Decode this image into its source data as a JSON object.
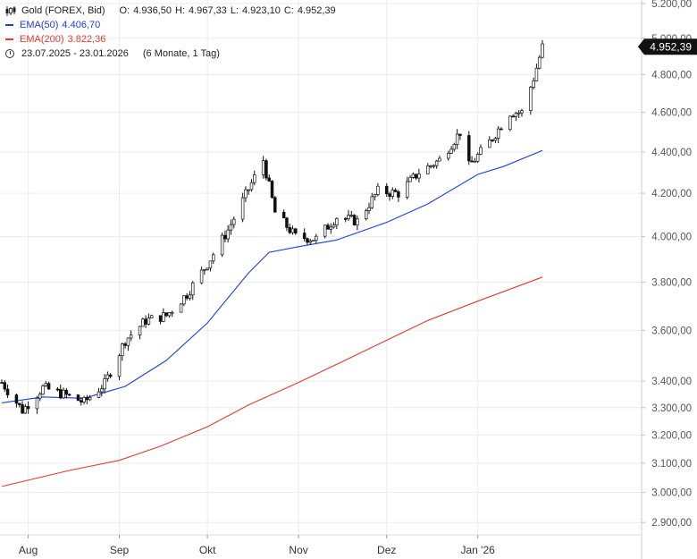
{
  "legend": {
    "instrument": "Gold (FOREX, Bid)",
    "open_label": "O:",
    "open": "4.936,50",
    "high_label": "H:",
    "high": "4.967,33",
    "low_label": "L:",
    "low": "4.923,10",
    "close_label": "C:",
    "close": "4.952,39",
    "ema50_name": "EMA(50)",
    "ema50_value": "4.406,70",
    "ema200_name": "EMA(200)",
    "ema200_value": "3.822,36",
    "range": "23.07.2025 - 23.01.2026",
    "period": "(6 Monate, 1 Tag)"
  },
  "colors": {
    "ema50": "#1e3fd6",
    "ema200": "#e33b2e",
    "candle": "#111111",
    "grid": "#ececec",
    "price_tag": "#111111"
  },
  "icons": {
    "chart-type": "candlestick-icon",
    "range": "clock-icon"
  },
  "chart_data": {
    "type": "line",
    "scale": "log",
    "ylim": [
      2860,
      5220
    ],
    "yticks": [
      2900,
      3000,
      3100,
      3200,
      3300,
      3400,
      3600,
      3800,
      4000,
      4200,
      4400,
      4600,
      4800,
      5000,
      5200
    ],
    "ytick_labels": [
      "2.900,00",
      "3.000,00",
      "3.100,00",
      "3.200,00",
      "3.300,00",
      "3.400,00",
      "3.600,00",
      "3.800,00",
      "4.000,00",
      "4.200,00",
      "4.400,00",
      "4.600,00",
      "4.800,00",
      "5.000,00",
      "5.200,00"
    ],
    "xlim": [
      "2025-07-23",
      "2026-01-23"
    ],
    "xticks": [
      {
        "date": "2025-08-01",
        "label": "Aug"
      },
      {
        "date": "2025-09-01",
        "label": "Sep"
      },
      {
        "date": "2025-10-01",
        "label": "Okt"
      },
      {
        "date": "2025-11-01",
        "label": "Nov"
      },
      {
        "date": "2025-12-01",
        "label": "Dez"
      },
      {
        "date": "2026-01-01",
        "label": "Jan '26"
      }
    ],
    "last_price": 4952.39,
    "last_price_label": "4.952,39",
    "series": [
      {
        "name": "Gold (FOREX, Bid)",
        "kind": "close",
        "x": [
          "2025-07-23",
          "2025-07-30",
          "2025-08-06",
          "2025-08-13",
          "2025-08-20",
          "2025-08-27",
          "2025-09-03",
          "2025-09-10",
          "2025-09-17",
          "2025-09-24",
          "2025-10-01",
          "2025-10-08",
          "2025-10-15",
          "2025-10-20",
          "2025-10-24",
          "2025-10-31",
          "2025-11-07",
          "2025-11-14",
          "2025-11-21",
          "2025-11-28",
          "2025-12-05",
          "2025-12-12",
          "2025-12-19",
          "2025-12-26",
          "2025-12-29",
          "2026-01-05",
          "2026-01-12",
          "2026-01-16",
          "2026-01-20",
          "2026-01-23"
        ],
        "values": [
          3395,
          3290,
          3375,
          3350,
          3320,
          3390,
          3560,
          3640,
          3660,
          3750,
          3880,
          4030,
          4220,
          4360,
          4110,
          4000,
          3990,
          4090,
          4070,
          4210,
          4200,
          4300,
          4360,
          4500,
          4330,
          4450,
          4600,
          4600,
          4780,
          4952
        ]
      },
      {
        "name": "EMA(50)",
        "x": [
          "2025-07-23",
          "2025-08-06",
          "2025-08-20",
          "2025-09-03",
          "2025-09-17",
          "2025-10-01",
          "2025-10-15",
          "2025-10-22",
          "2025-11-01",
          "2025-11-14",
          "2025-12-01",
          "2025-12-15",
          "2026-01-01",
          "2026-01-10",
          "2026-01-23"
        ],
        "values": [
          3318,
          3340,
          3335,
          3380,
          3480,
          3630,
          3840,
          3930,
          3955,
          3985,
          4065,
          4150,
          4290,
          4330,
          4407
        ]
      },
      {
        "name": "EMA(200)",
        "x": [
          "2025-07-23",
          "2025-08-15",
          "2025-09-01",
          "2025-09-15",
          "2025-10-01",
          "2025-10-15",
          "2025-11-01",
          "2025-11-15",
          "2025-12-01",
          "2025-12-15",
          "2026-01-01",
          "2026-01-23"
        ],
        "values": [
          3020,
          3075,
          3110,
          3160,
          3230,
          3310,
          3395,
          3470,
          3560,
          3640,
          3720,
          3822
        ]
      }
    ]
  }
}
